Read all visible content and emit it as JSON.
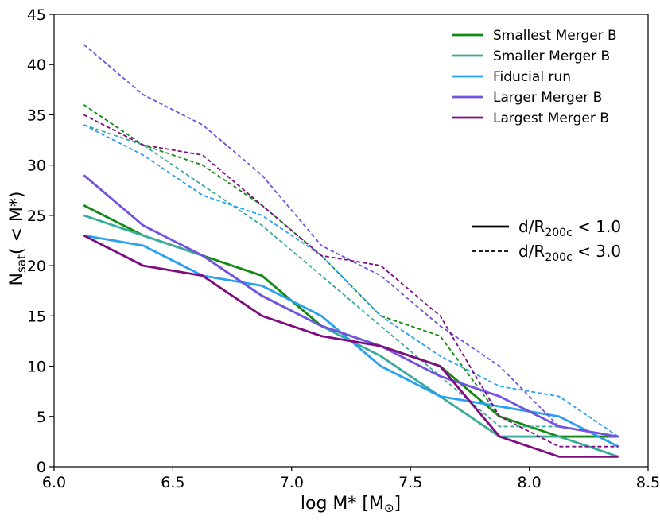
{
  "chart_data": {
    "type": "line",
    "title": "",
    "xlabel_main": "log M",
    "xlabel_sub": "*",
    "xlabel_unit_open": " [M",
    "xlabel_unit_sub": "⊙",
    "xlabel_unit_close": "]",
    "ylabel_main": "N",
    "ylabel_sub": "sat",
    "ylabel_rest": "( < M",
    "ylabel_rest_sub": "*",
    "ylabel_close": ")",
    "xlim": [
      6.0,
      8.5
    ],
    "ylim": [
      0,
      45
    ],
    "x_ticks": [
      6.0,
      6.5,
      7.0,
      7.5,
      8.0,
      8.5
    ],
    "x_tick_labels": [
      "6.0",
      "6.5",
      "7.0",
      "7.5",
      "8.0",
      "8.5"
    ],
    "y_ticks": [
      0,
      5,
      10,
      15,
      20,
      25,
      30,
      35,
      40,
      45
    ],
    "y_tick_labels": [
      "0",
      "5",
      "10",
      "15",
      "20",
      "25",
      "30",
      "35",
      "40",
      "45"
    ],
    "x": [
      6.125,
      6.375,
      6.625,
      6.875,
      7.125,
      7.375,
      7.625,
      7.875,
      8.125,
      8.375
    ],
    "series": [
      {
        "name": "Smallest Merger B",
        "color": "#138a13",
        "solid": [
          26,
          23,
          21,
          19,
          14,
          12,
          10,
          5,
          3,
          3
        ],
        "dashed": [
          36,
          32,
          30,
          26,
          21,
          15,
          13,
          5,
          3,
          3
        ]
      },
      {
        "name": "Smaller Merger B",
        "color": "#3aab9b",
        "solid": [
          25,
          23,
          21,
          17,
          14,
          11,
          7,
          3,
          3,
          1
        ],
        "dashed": [
          34,
          32,
          28,
          24,
          19,
          14,
          9,
          4,
          4,
          3
        ]
      },
      {
        "name": "Fiducial run",
        "color": "#2aa0f0",
        "solid": [
          23,
          22,
          19,
          18,
          15,
          10,
          7,
          6,
          5,
          2
        ],
        "dashed": [
          34,
          31,
          27,
          25,
          21,
          15,
          11,
          8,
          7,
          3
        ]
      },
      {
        "name": "Larger Merger B",
        "color": "#7253e0",
        "solid": [
          29,
          24,
          21,
          17,
          14,
          12,
          9,
          7,
          4,
          3
        ],
        "dashed": [
          42,
          37,
          34,
          29,
          22,
          19,
          14,
          10,
          4,
          3
        ]
      },
      {
        "name": "Largest Merger B",
        "color": "#7e0d80",
        "solid": [
          23,
          20,
          19,
          15,
          13,
          12,
          10,
          3,
          1,
          1
        ],
        "dashed": [
          35,
          32,
          31,
          26,
          21,
          20,
          15,
          5,
          2,
          2
        ]
      }
    ],
    "style_legend": [
      {
        "style": "solid",
        "label_main": "d/R",
        "label_sub": "200c",
        "label_rest": " < 1.0"
      },
      {
        "style": "dashed",
        "label_main": "d/R",
        "label_sub": "200c",
        "label_rest": " < 3.0"
      }
    ],
    "legend_position": "top-right"
  }
}
